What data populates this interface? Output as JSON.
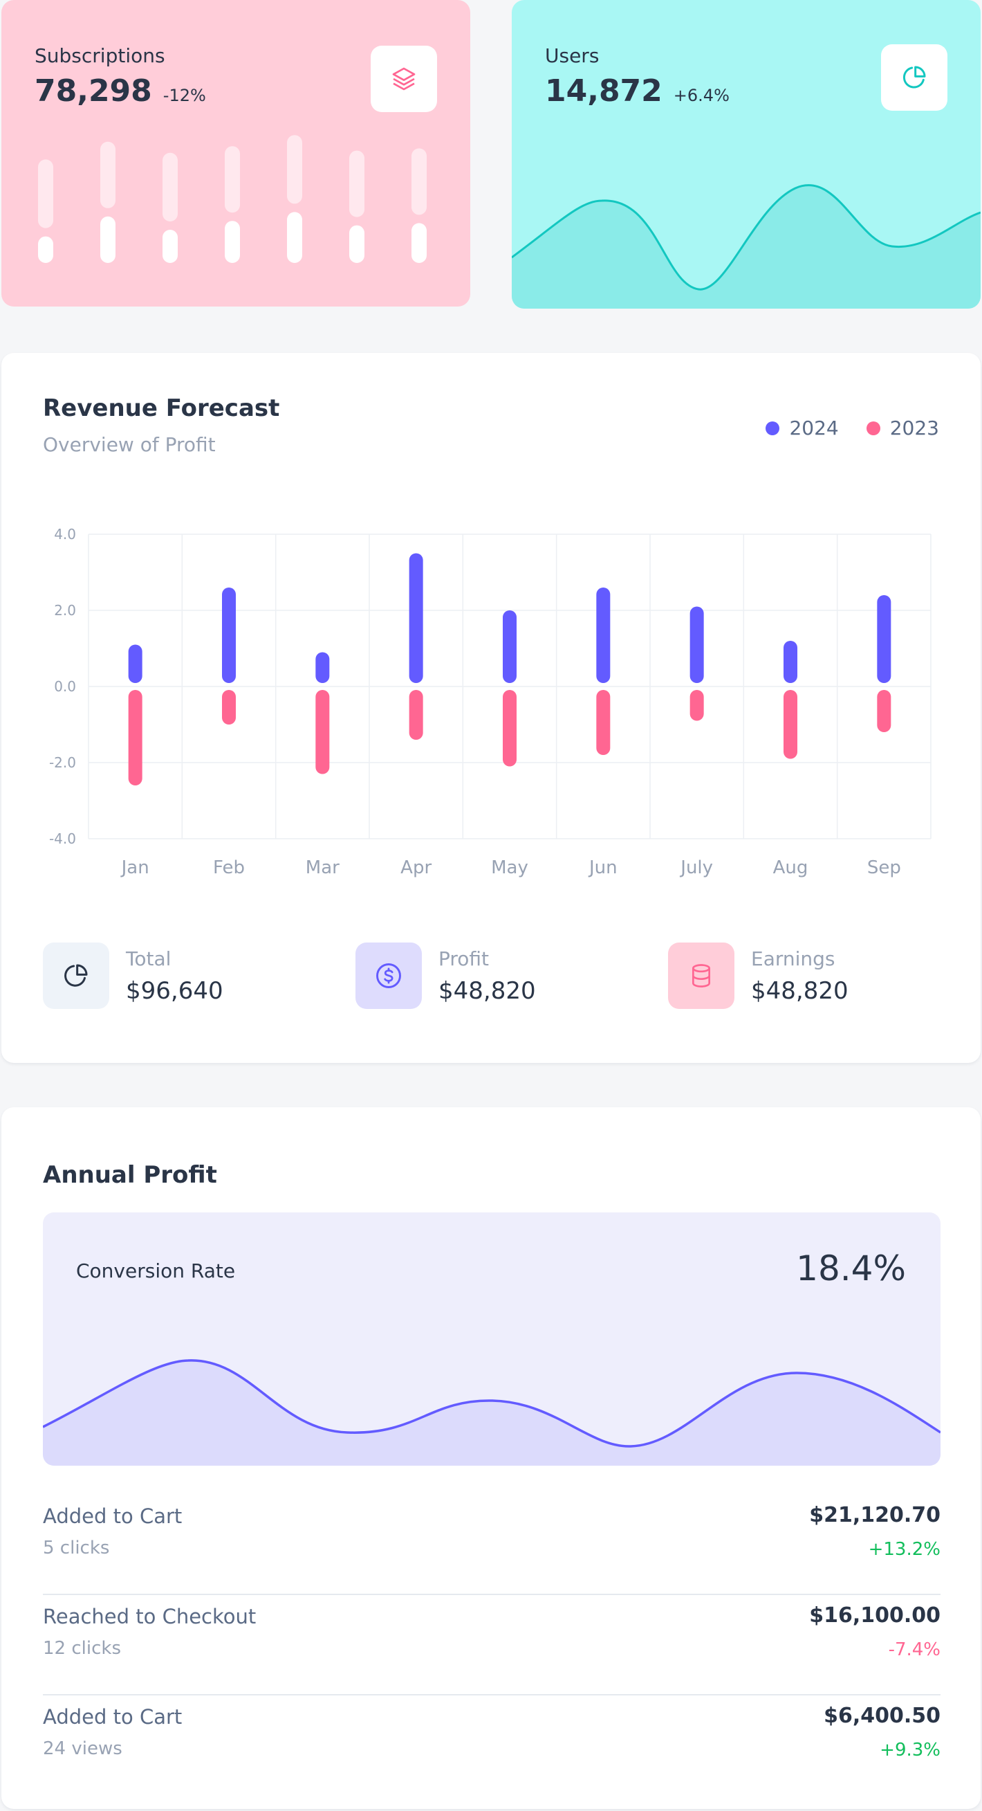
{
  "colors": {
    "purple": "#635bff",
    "pink": "#ff6692",
    "teal": "#13c7c0",
    "green": "#13be5c",
    "pink_bg": "#ffcdd9",
    "teal_bg": "#a9f7f4"
  },
  "subscriptions": {
    "title": "Subscriptions",
    "value": "78,298",
    "change": "-12%",
    "icon": "layers-icon",
    "bars": [
      {
        "light": 0.62,
        "solid": 0.24
      },
      {
        "light": 0.6,
        "solid": 0.42
      },
      {
        "light": 0.62,
        "solid": 0.3
      },
      {
        "light": 0.6,
        "solid": 0.38
      },
      {
        "light": 0.62,
        "solid": 0.46
      },
      {
        "light": 0.6,
        "solid": 0.34
      },
      {
        "light": 0.6,
        "solid": 0.36
      }
    ]
  },
  "users": {
    "title": "Users",
    "value": "14,872",
    "change": "+6.4%",
    "icon": "pie-chart-icon"
  },
  "revenue": {
    "title": "Revenue Forecast",
    "subtitle": "Overview of Profit",
    "legend": [
      {
        "label": "2024",
        "color": "#635bff"
      },
      {
        "label": "2023",
        "color": "#ff6692"
      }
    ],
    "stats": [
      {
        "label": "Total",
        "value": "$96,640",
        "icon": "pie-chart-icon"
      },
      {
        "label": "Profit",
        "value": "$48,820",
        "icon": "dollar-icon"
      },
      {
        "label": "Earnings",
        "value": "$48,820",
        "icon": "database-icon"
      }
    ]
  },
  "chart_data": {
    "type": "bar",
    "title": "Revenue Forecast",
    "categories": [
      "Jan",
      "Feb",
      "Mar",
      "Apr",
      "May",
      "Jun",
      "July",
      "Aug",
      "Sep"
    ],
    "series": [
      {
        "name": "2024",
        "values": [
          1.1,
          2.6,
          0.9,
          3.5,
          2.0,
          2.6,
          2.1,
          1.2,
          2.4
        ]
      },
      {
        "name": "2023",
        "values": [
          -2.6,
          -1.0,
          -2.3,
          -1.4,
          -2.1,
          -1.8,
          -0.9,
          -1.9,
          -1.2
        ]
      }
    ],
    "yticks": [
      "4.0",
      "2.0",
      "0.0",
      "-2.0",
      "-4.0"
    ],
    "ylim": [
      -4,
      4
    ],
    "xlabel": "",
    "ylabel": "",
    "grid": true,
    "legend_position": "top-right"
  },
  "annual": {
    "title": "Annual Profit",
    "conversion_label": "Conversion Rate",
    "conversion_value": "18.4%",
    "rows": [
      {
        "label": "Added to Cart",
        "sub": "5 clicks",
        "amount": "$21,120.70",
        "change": "+13.2%",
        "trend": "up"
      },
      {
        "label": "Reached to Checkout",
        "sub": "12 clicks",
        "amount": "$16,100.00",
        "change": "-7.4%",
        "trend": "down"
      },
      {
        "label": "Added to Cart",
        "sub": "24 views",
        "amount": "$6,400.50",
        "change": "+9.3%",
        "trend": "up"
      }
    ]
  }
}
